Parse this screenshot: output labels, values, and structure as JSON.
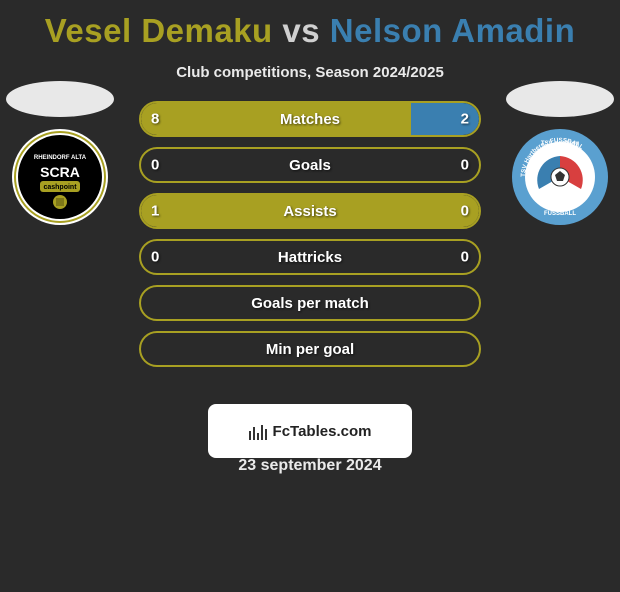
{
  "colors": {
    "p1": "#a8a022",
    "p2_border": "#3a7fb0",
    "bar_border": "#a8a022",
    "bar_fill_left": "#a8a022",
    "bar_fill_right": "#3a7fb0",
    "bg": "#2a2a2a"
  },
  "title": {
    "part1": "Vesel Demaku",
    "vs": " vs ",
    "part2": "Nelson Amadin"
  },
  "subtitle": "Club competitions, Season 2024/2025",
  "bars": [
    {
      "label": "Matches",
      "left": "8",
      "right": "2",
      "left_pct": 80,
      "right_pct": 20
    },
    {
      "label": "Goals",
      "left": "0",
      "right": "0",
      "left_pct": 0,
      "right_pct": 0
    },
    {
      "label": "Assists",
      "left": "1",
      "right": "0",
      "left_pct": 100,
      "right_pct": 0
    },
    {
      "label": "Hattricks",
      "left": "0",
      "right": "0",
      "left_pct": 0,
      "right_pct": 0
    },
    {
      "label": "Goals per match",
      "left": "",
      "right": "",
      "left_pct": 0,
      "right_pct": 0
    },
    {
      "label": "Min per goal",
      "left": "",
      "right": "",
      "left_pct": 0,
      "right_pct": 0
    }
  ],
  "clubs": {
    "left": {
      "name": "SCRA",
      "sub": "cashpoint",
      "ring_color": "#a8a022",
      "bg": "#000000"
    },
    "right": {
      "name": "TSV Hartberg",
      "ring_color": "#4a8fc0"
    }
  },
  "watermark": {
    "text": "FcTables.com"
  },
  "date": "23 september 2024"
}
